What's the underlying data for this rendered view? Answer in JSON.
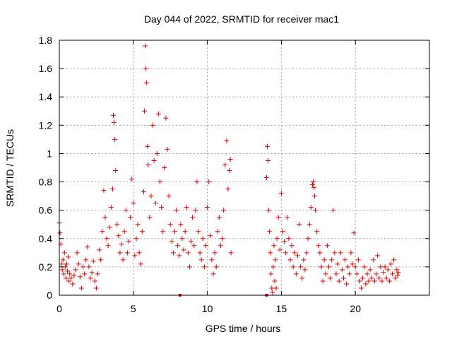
{
  "chart_data": {
    "type": "scatter",
    "title": "Day 044 of 2022, SRMTID for receiver mac1",
    "xlabel": "GPS time / hours",
    "ylabel": "SRMTID / TECUs",
    "xlim": [
      0,
      25
    ],
    "ylim": [
      0,
      1.8
    ],
    "xticks": [
      0,
      5,
      10,
      15,
      20
    ],
    "xtick_labels": [
      "0",
      "5",
      "10",
      "15",
      "20"
    ],
    "yticks": [
      0,
      0.2,
      0.4,
      0.6,
      0.8,
      1,
      1.2,
      1.4,
      1.6,
      1.8
    ],
    "ytick_labels": [
      "0",
      "0.2",
      "0.4",
      "0.6",
      "0.8",
      "1",
      "1.2",
      "1.4",
      "1.6",
      "1.8"
    ],
    "grid": true,
    "marker": "plus",
    "color": "#e00000",
    "series": [
      {
        "points": [
          [
            0.0,
            0.51
          ],
          [
            0.05,
            0.44
          ],
          [
            0.1,
            0.36
          ],
          [
            0.15,
            0.22
          ],
          [
            0.2,
            0.18
          ],
          [
            0.25,
            0.25
          ],
          [
            0.3,
            0.15
          ],
          [
            0.35,
            0.3
          ],
          [
            0.4,
            0.2
          ],
          [
            0.45,
            0.12
          ],
          [
            0.5,
            0.22
          ],
          [
            0.55,
            0.17
          ],
          [
            0.6,
            0.27
          ],
          [
            0.65,
            0.1
          ],
          [
            0.7,
            0.15
          ],
          [
            0.8,
            0.12
          ],
          [
            0.9,
            0.08
          ],
          [
            1.0,
            0.14
          ],
          [
            1.1,
            0.18
          ],
          [
            1.2,
            0.3
          ],
          [
            1.3,
            0.22
          ],
          [
            1.4,
            0.13
          ],
          [
            1.5,
            0.05
          ],
          [
            1.6,
            0.2
          ],
          [
            1.7,
            0.15
          ],
          [
            1.8,
            0.25
          ],
          [
            1.9,
            0.34
          ],
          [
            2.0,
            0.2
          ],
          [
            2.1,
            0.12
          ],
          [
            2.2,
            0.16
          ],
          [
            2.3,
            0.24
          ],
          [
            2.4,
            0.1
          ],
          [
            2.5,
            0.05
          ],
          [
            2.6,
            0.15
          ],
          [
            2.7,
            0.32
          ],
          [
            2.8,
            0.25
          ],
          [
            2.9,
            0.45
          ],
          [
            3.0,
            0.74
          ],
          [
            3.1,
            0.55
          ],
          [
            3.2,
            0.4
          ],
          [
            3.3,
            0.35
          ],
          [
            3.4,
            0.48
          ],
          [
            3.5,
            0.62
          ],
          [
            3.6,
            0.75
          ],
          [
            3.65,
            1.27
          ],
          [
            3.7,
            1.22
          ],
          [
            3.75,
            1.1
          ],
          [
            3.8,
            0.88
          ],
          [
            3.9,
            0.5
          ],
          [
            4.0,
            0.42
          ],
          [
            4.1,
            0.3
          ],
          [
            4.2,
            0.36
          ],
          [
            4.3,
            0.25
          ],
          [
            4.4,
            0.45
          ],
          [
            4.5,
            0.6
          ],
          [
            4.6,
            0.3
          ],
          [
            4.7,
            0.38
          ],
          [
            4.8,
            0.55
          ],
          [
            4.9,
            0.82
          ],
          [
            5.0,
            0.65
          ],
          [
            5.1,
            0.28
          ],
          [
            5.2,
            0.4
          ],
          [
            5.3,
            0.5
          ],
          [
            5.4,
            0.3
          ],
          [
            5.5,
            0.22
          ],
          [
            5.6,
            0.45
          ],
          [
            5.7,
            0.73
          ],
          [
            5.75,
            1.3
          ],
          [
            5.8,
            1.76
          ],
          [
            5.85,
            1.6
          ],
          [
            5.9,
            1.5
          ],
          [
            5.95,
            1.05
          ],
          [
            6.0,
            0.92
          ],
          [
            6.1,
            0.55
          ],
          [
            6.2,
            0.7
          ],
          [
            6.3,
            1.2
          ],
          [
            6.4,
            0.95
          ],
          [
            6.5,
            0.65
          ],
          [
            6.6,
            1.0
          ],
          [
            6.7,
            1.28
          ],
          [
            6.8,
            0.8
          ],
          [
            6.9,
            0.62
          ],
          [
            7.0,
            0.45
          ],
          [
            7.1,
            0.9
          ],
          [
            7.2,
            1.25
          ],
          [
            7.3,
            1.03
          ],
          [
            7.4,
            0.7
          ],
          [
            7.5,
            0.5
          ],
          [
            7.6,
            0.38
          ],
          [
            7.7,
            0.3
          ],
          [
            7.8,
            0.45
          ],
          [
            7.9,
            0.6
          ],
          [
            8.0,
            0.35
          ],
          [
            8.1,
            0.28
          ],
          [
            8.2,
            0.5
          ],
          [
            8.3,
            0.4
          ],
          [
            8.4,
            0.32
          ],
          [
            8.5,
            0.45
          ],
          [
            8.6,
            0.62
          ],
          [
            8.7,
            0.3
          ],
          [
            8.8,
            0.2
          ],
          [
            8.9,
            0.38
          ],
          [
            9.0,
            0.55
          ],
          [
            9.1,
            0.35
          ],
          [
            9.2,
            0.6
          ],
          [
            9.3,
            0.8
          ],
          [
            9.4,
            0.45
          ],
          [
            9.5,
            0.3
          ],
          [
            9.6,
            0.25
          ],
          [
            9.7,
            0.4
          ],
          [
            9.8,
            0.2
          ],
          [
            9.9,
            0.35
          ],
          [
            10.0,
            0.62
          ],
          [
            10.1,
            0.8
          ],
          [
            10.2,
            0.42
          ],
          [
            10.3,
            0.25
          ],
          [
            10.4,
            0.15
          ],
          [
            10.5,
            0.3
          ],
          [
            10.6,
            0.2
          ],
          [
            10.7,
            0.45
          ],
          [
            10.8,
            0.55
          ],
          [
            10.9,
            0.35
          ],
          [
            11.0,
            0.4
          ],
          [
            11.1,
            0.6
          ],
          [
            11.2,
            0.92
          ],
          [
            11.3,
            1.09
          ],
          [
            11.4,
            0.75
          ],
          [
            11.5,
            0.88
          ],
          [
            11.55,
            0.96
          ],
          [
            11.6,
            0.3
          ]
        ]
      },
      {
        "points": [
          [
            14.0,
            0.83
          ],
          [
            14.05,
            1.05
          ],
          [
            14.1,
            0.95
          ],
          [
            14.15,
            0.6
          ],
          [
            14.2,
            0.45
          ],
          [
            14.25,
            0.3
          ],
          [
            14.3,
            0.15
          ],
          [
            14.35,
            0.05
          ],
          [
            14.4,
            0.02
          ],
          [
            14.45,
            0.2
          ],
          [
            14.5,
            0.35
          ],
          [
            14.55,
            0.1
          ],
          [
            14.6,
            0.25
          ],
          [
            14.65,
            0.05
          ],
          [
            14.7,
            0.4
          ],
          [
            14.8,
            0.55
          ],
          [
            14.9,
            0.32
          ],
          [
            15.0,
            0.72
          ],
          [
            15.1,
            0.45
          ],
          [
            15.2,
            0.38
          ],
          [
            15.3,
            0.3
          ],
          [
            15.4,
            0.55
          ],
          [
            15.5,
            0.4
          ],
          [
            15.6,
            0.25
          ],
          [
            15.7,
            0.35
          ],
          [
            15.8,
            0.2
          ],
          [
            15.9,
            0.3
          ],
          [
            16.0,
            0.15
          ],
          [
            16.1,
            0.28
          ],
          [
            16.2,
            0.5
          ],
          [
            16.3,
            0.2
          ],
          [
            16.4,
            0.12
          ],
          [
            16.5,
            0.25
          ],
          [
            16.6,
            0.18
          ],
          [
            16.7,
            0.3
          ],
          [
            16.8,
            0.4
          ],
          [
            16.9,
            0.5
          ],
          [
            17.0,
            0.62
          ],
          [
            17.1,
            0.78
          ],
          [
            17.15,
            0.8
          ],
          [
            17.2,
            0.76
          ],
          [
            17.25,
            0.7
          ],
          [
            17.3,
            0.6
          ],
          [
            17.4,
            0.45
          ],
          [
            17.5,
            0.35
          ],
          [
            17.6,
            0.3
          ],
          [
            17.7,
            0.2
          ],
          [
            17.8,
            0.1
          ],
          [
            17.9,
            0.25
          ],
          [
            18.0,
            0.15
          ],
          [
            18.1,
            0.35
          ],
          [
            18.2,
            0.2
          ],
          [
            18.3,
            0.12
          ],
          [
            18.4,
            0.25
          ],
          [
            18.5,
            0.6
          ],
          [
            18.6,
            0.3
          ],
          [
            18.7,
            0.15
          ],
          [
            18.8,
            0.22
          ],
          [
            18.9,
            0.1
          ],
          [
            19.0,
            0.3
          ],
          [
            19.1,
            0.18
          ],
          [
            19.2,
            0.12
          ],
          [
            19.3,
            0.25
          ],
          [
            19.4,
            0.08
          ],
          [
            19.5,
            0.2
          ],
          [
            19.6,
            0.15
          ],
          [
            19.7,
            0.3
          ],
          [
            19.8,
            0.22
          ],
          [
            19.9,
            0.44
          ],
          [
            20.0,
            0.2
          ],
          [
            20.1,
            0.15
          ],
          [
            20.2,
            0.25
          ],
          [
            20.3,
            0.1
          ],
          [
            20.4,
            0.05
          ],
          [
            20.5,
            0.12
          ],
          [
            20.6,
            0.2
          ],
          [
            20.7,
            0.08
          ],
          [
            20.8,
            0.15
          ],
          [
            20.9,
            0.1
          ],
          [
            21.0,
            0.18
          ],
          [
            21.1,
            0.12
          ],
          [
            21.2,
            0.25
          ],
          [
            21.3,
            0.1
          ],
          [
            21.4,
            0.15
          ],
          [
            21.5,
            0.28
          ],
          [
            21.6,
            0.12
          ],
          [
            21.7,
            0.2
          ],
          [
            21.8,
            0.1
          ],
          [
            21.9,
            0.16
          ],
          [
            22.0,
            0.2
          ],
          [
            22.1,
            0.12
          ],
          [
            22.2,
            0.18
          ],
          [
            22.3,
            0.1
          ],
          [
            22.4,
            0.22
          ],
          [
            22.5,
            0.15
          ],
          [
            22.6,
            0.25
          ],
          [
            22.7,
            0.12
          ],
          [
            22.8,
            0.18
          ],
          [
            22.85,
            0.14
          ],
          [
            22.9,
            0.16
          ]
        ]
      }
    ],
    "zero_markers": [
      8.15,
      14.0
    ]
  }
}
